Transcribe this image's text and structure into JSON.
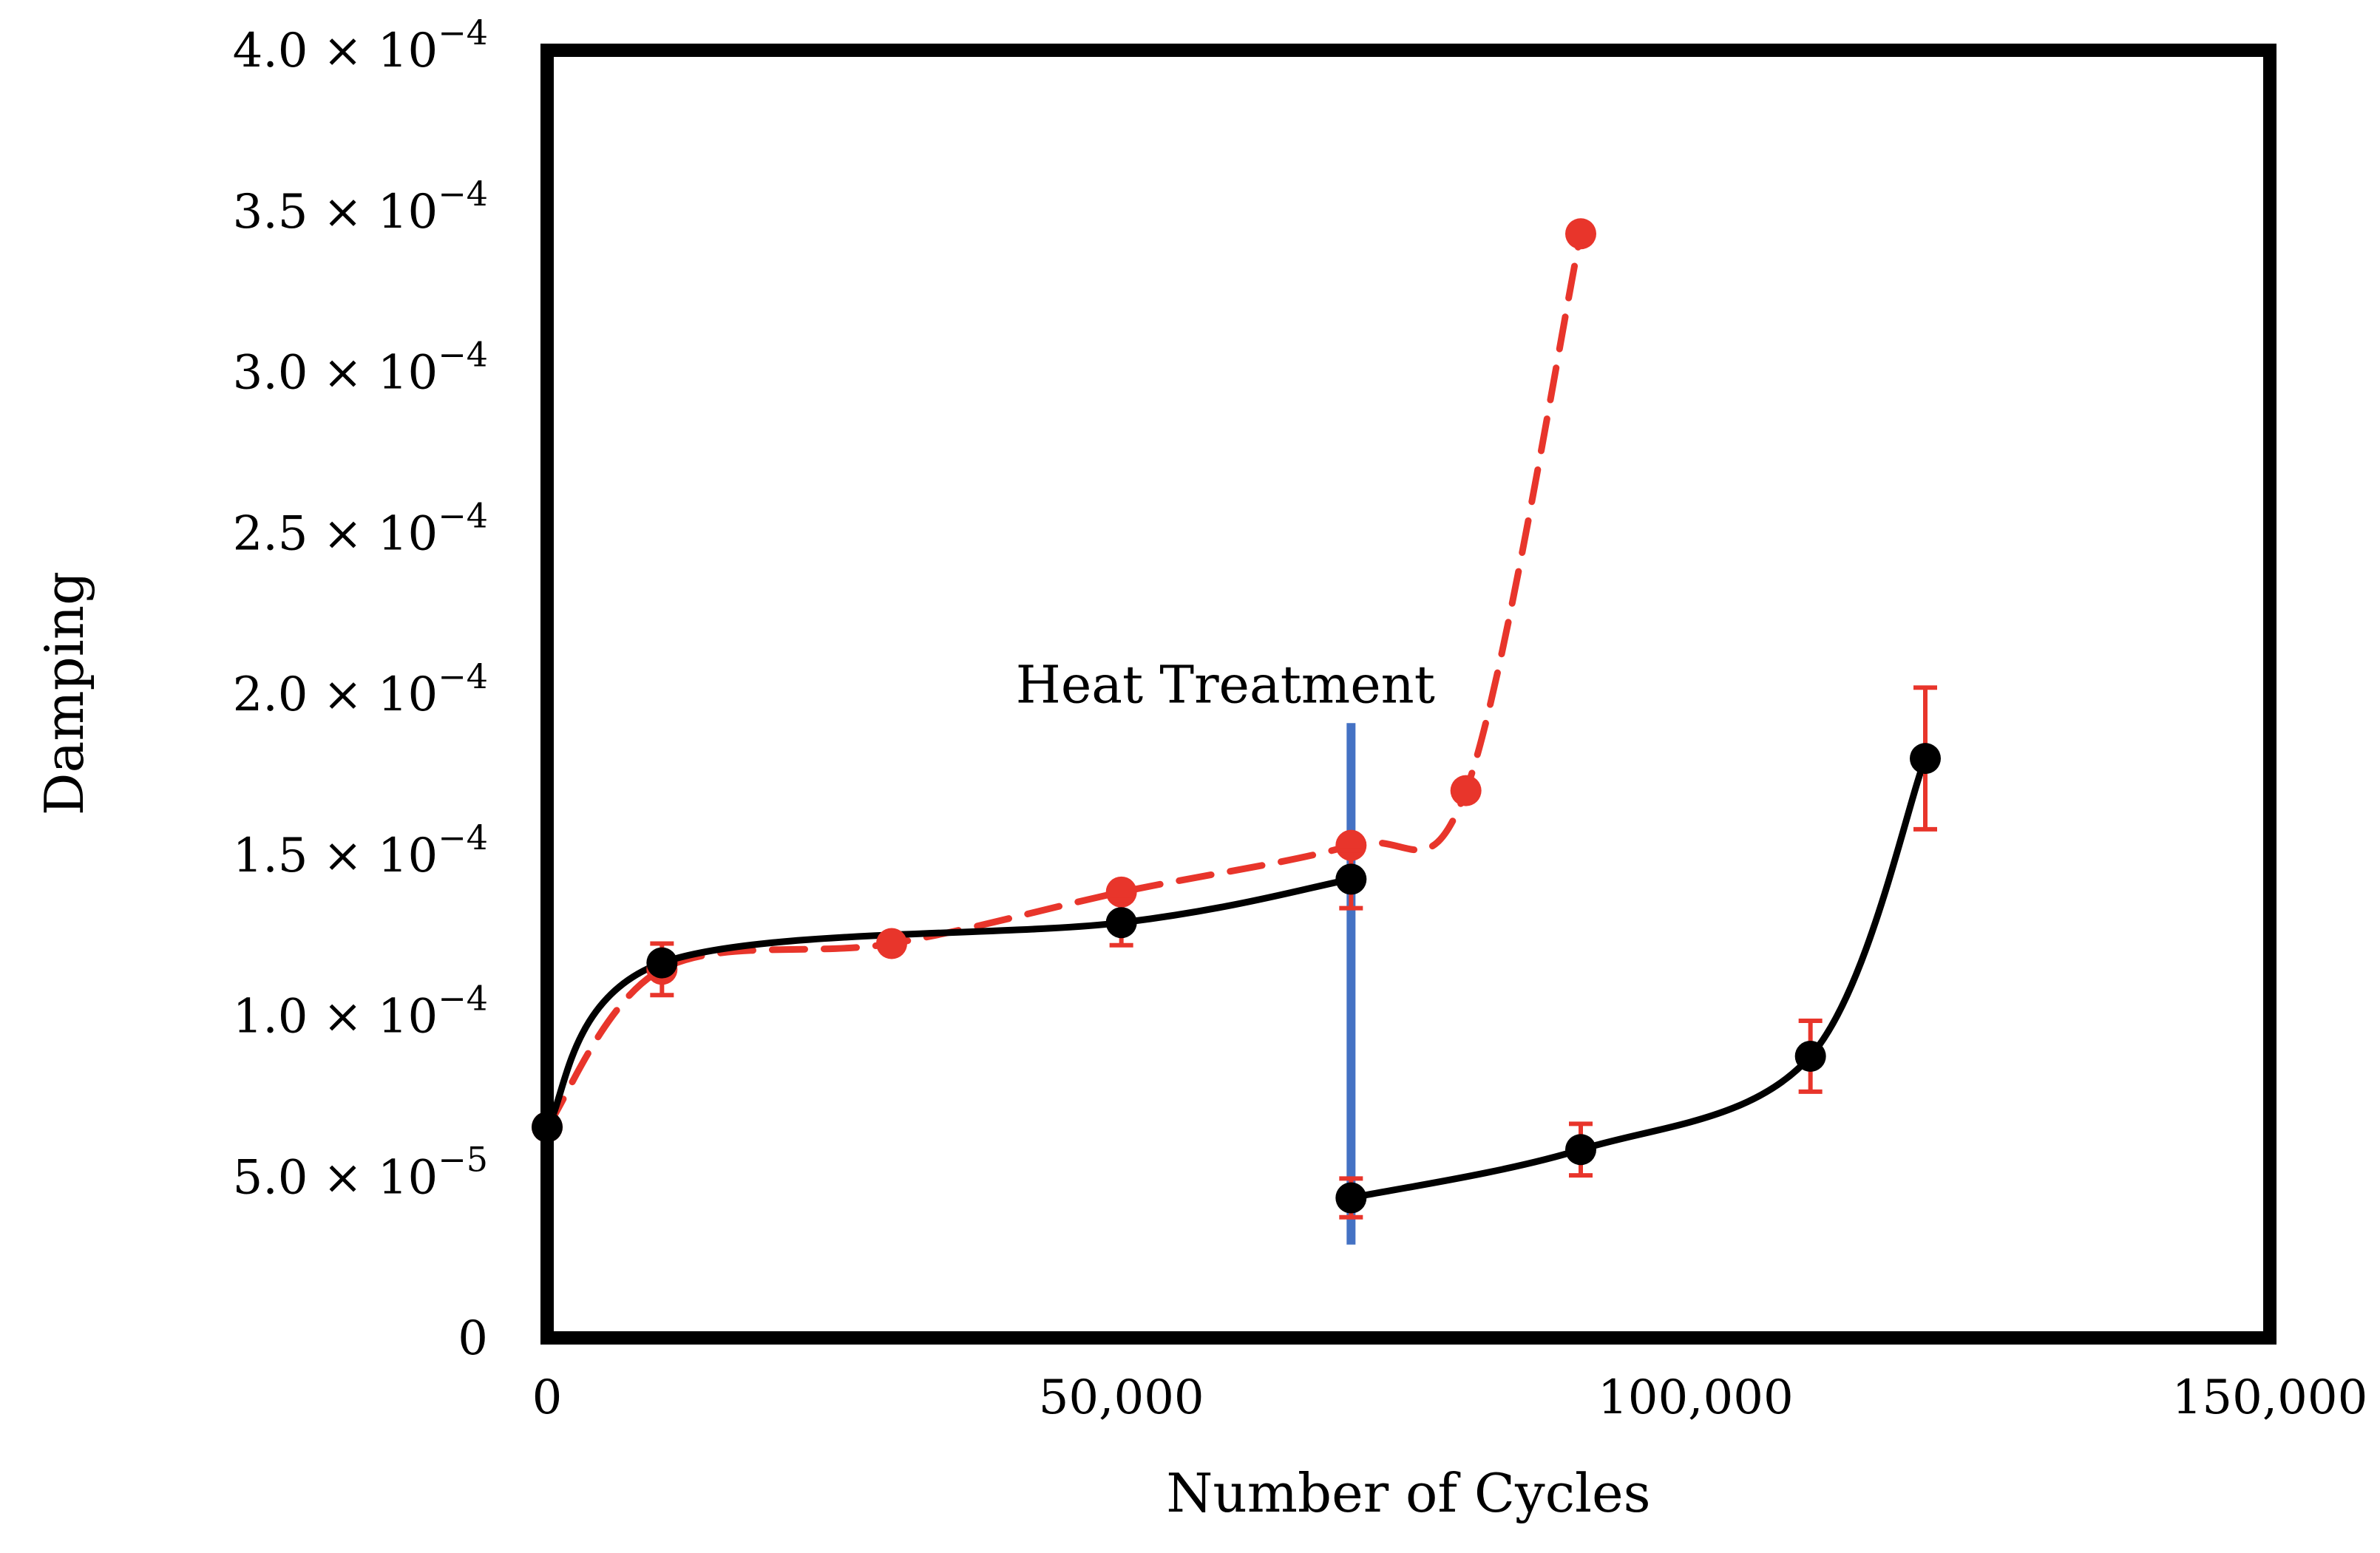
{
  "chart_data": {
    "type": "line",
    "title": "",
    "xlabel": "Number of Cycles",
    "ylabel": "Damping",
    "xlim": [
      0,
      150000
    ],
    "ylim": [
      0,
      0.0004
    ],
    "grid": false,
    "x_ticks": [
      {
        "value": 0,
        "label": "0"
      },
      {
        "value": 50000,
        "label": "50,000"
      },
      {
        "value": 100000,
        "label": "100,000"
      },
      {
        "value": 150000,
        "label": "150,000"
      }
    ],
    "y_ticks": [
      {
        "value": 0,
        "mant": "0",
        "exp": ""
      },
      {
        "value": 5e-05,
        "mant": "5.0 × 10",
        "exp": "−5"
      },
      {
        "value": 0.0001,
        "mant": "1.0 × 10",
        "exp": "−4"
      },
      {
        "value": 0.00015,
        "mant": "1.5 × 10",
        "exp": "−4"
      },
      {
        "value": 0.0002,
        "mant": "2.0 × 10",
        "exp": "−4"
      },
      {
        "value": 0.00025,
        "mant": "2.5 × 10",
        "exp": "−4"
      },
      {
        "value": 0.0003,
        "mant": "3.0 × 10",
        "exp": "−4"
      },
      {
        "value": 0.00035,
        "mant": "3.5 × 10",
        "exp": "−4"
      },
      {
        "value": 0.0004,
        "mant": "4.0 × 10",
        "exp": "−4"
      }
    ],
    "series": [
      {
        "name": "red-dashed",
        "color": "#e8352b",
        "dashed": true,
        "points": [
          {
            "x": 0,
            "y": 6.55e-05
          },
          {
            "x": 10000,
            "y": 0.0001145,
            "err": 8e-06
          },
          {
            "x": 30000,
            "y": 0.0001225
          },
          {
            "x": 50000,
            "y": 0.0001385
          },
          {
            "x": 70000,
            "y": 0.000153
          },
          {
            "x": 80000,
            "y": 0.00017
          },
          {
            "x": 90000,
            "y": 0.000343
          }
        ]
      },
      {
        "name": "black-before",
        "color": "#000000",
        "dashed": false,
        "points": [
          {
            "x": 0,
            "y": 6.55e-05
          },
          {
            "x": 10000,
            "y": 0.0001165
          },
          {
            "x": 50000,
            "y": 0.000129,
            "err": 7e-06
          },
          {
            "x": 70000,
            "y": 0.0001425,
            "err": 9e-06
          }
        ]
      },
      {
        "name": "black-after",
        "color": "#000000",
        "dashed": false,
        "points": [
          {
            "x": 70000,
            "y": 4.35e-05,
            "err": 6e-06
          },
          {
            "x": 90000,
            "y": 5.85e-05,
            "err": 8e-06
          },
          {
            "x": 110000,
            "y": 8.75e-05,
            "err": 1.1e-05
          },
          {
            "x": 120000,
            "y": 0.00018,
            "err": 2.2e-05
          }
        ]
      }
    ],
    "annotations": [
      {
        "text": "Heat Treatment",
        "x": 70000,
        "y": 0.000202
      }
    ],
    "vline": {
      "x": 70000,
      "y1": 2.9e-05,
      "y2": 0.000191,
      "color": "#4472c4"
    }
  }
}
